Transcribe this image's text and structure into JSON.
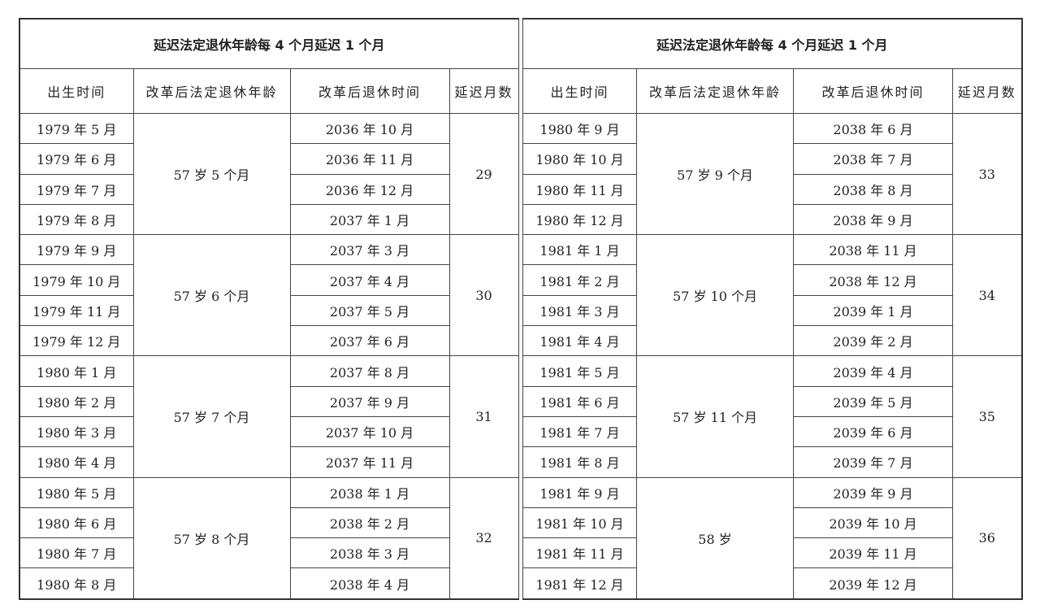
{
  "left": {
    "title": "延迟法定退休年龄每 4 个月延迟 1 个月",
    "headers": [
      "出生时间",
      "改革后法定退休年龄",
      "改革后退休时间",
      "延迟月数"
    ],
    "groups": [
      {
        "age": "57 岁 5 个月",
        "delay": "29",
        "rows": [
          {
            "birth": "1979 年 5 月",
            "retire": "2036 年 10 月"
          },
          {
            "birth": "1979 年 6 月",
            "retire": "2036 年 11 月"
          },
          {
            "birth": "1979 年 7 月",
            "retire": "2036 年 12 月"
          },
          {
            "birth": "1979 年 8 月",
            "retire": "2037 年 1 月"
          }
        ]
      },
      {
        "age": "57 岁 6 个月",
        "delay": "30",
        "rows": [
          {
            "birth": "1979 年 9 月",
            "retire": "2037 年 3 月"
          },
          {
            "birth": "1979 年 10 月",
            "retire": "2037 年 4 月"
          },
          {
            "birth": "1979 年 11 月",
            "retire": "2037 年 5 月"
          },
          {
            "birth": "1979 年 12 月",
            "retire": "2037 年 6 月"
          }
        ]
      },
      {
        "age": "57 岁 7 个月",
        "delay": "31",
        "rows": [
          {
            "birth": "1980 年 1 月",
            "retire": "2037 年 8 月"
          },
          {
            "birth": "1980 年 2 月",
            "retire": "2037 年 9 月"
          },
          {
            "birth": "1980 年 3 月",
            "retire": "2037 年 10 月"
          },
          {
            "birth": "1980 年 4 月",
            "retire": "2037 年 11 月"
          }
        ]
      },
      {
        "age": "57 岁 8 个月",
        "delay": "32",
        "rows": [
          {
            "birth": "1980 年 5 月",
            "retire": "2038 年 1 月"
          },
          {
            "birth": "1980 年 6 月",
            "retire": "2038 年 2 月"
          },
          {
            "birth": "1980 年 7 月",
            "retire": "2038 年 3 月"
          },
          {
            "birth": "1980 年 8 月",
            "retire": "2038 年 4 月"
          }
        ]
      }
    ]
  },
  "right": {
    "title": "延迟法定退休年龄每 4 个月延迟 1 个月",
    "headers": [
      "出生时间",
      "改革后法定退休年龄",
      "改革后退休时间",
      "延迟月数"
    ],
    "groups": [
      {
        "age": "57 岁 9 个月",
        "delay": "33",
        "rows": [
          {
            "birth": "1980 年 9 月",
            "retire": "2038 年 6 月"
          },
          {
            "birth": "1980 年 10 月",
            "retire": "2038 年 7 月"
          },
          {
            "birth": "1980 年 11 月",
            "retire": "2038 年 8 月"
          },
          {
            "birth": "1980 年 12 月",
            "retire": "2038 年 9 月"
          }
        ]
      },
      {
        "age": "57 岁 10 个月",
        "delay": "34",
        "rows": [
          {
            "birth": "1981 年 1 月",
            "retire": "2038 年 11 月"
          },
          {
            "birth": "1981 年 2 月",
            "retire": "2038 年 12 月"
          },
          {
            "birth": "1981 年 3 月",
            "retire": "2039 年 1 月"
          },
          {
            "birth": "1981 年 4 月",
            "retire": "2039 年 2 月"
          }
        ]
      },
      {
        "age": "57 岁 11 个月",
        "delay": "35",
        "rows": [
          {
            "birth": "1981 年 5 月",
            "retire": "2039 年 4 月"
          },
          {
            "birth": "1981 年 6 月",
            "retire": "2039 年 5 月"
          },
          {
            "birth": "1981 年 7 月",
            "retire": "2039 年 6 月"
          },
          {
            "birth": "1981 年 8 月",
            "retire": "2039 年 7 月"
          }
        ]
      },
      {
        "age": "58 岁",
        "delay": "36",
        "rows": [
          {
            "birth": "1981 年 9 月",
            "retire": "2039 年 9 月"
          },
          {
            "birth": "1981 年 10 月",
            "retire": "2039 年 10 月"
          },
          {
            "birth": "1981 年 11 月",
            "retire": "2039 年 11 月"
          },
          {
            "birth": "1981 年 12 月",
            "retire": "2039 年 12 月"
          }
        ]
      }
    ]
  }
}
